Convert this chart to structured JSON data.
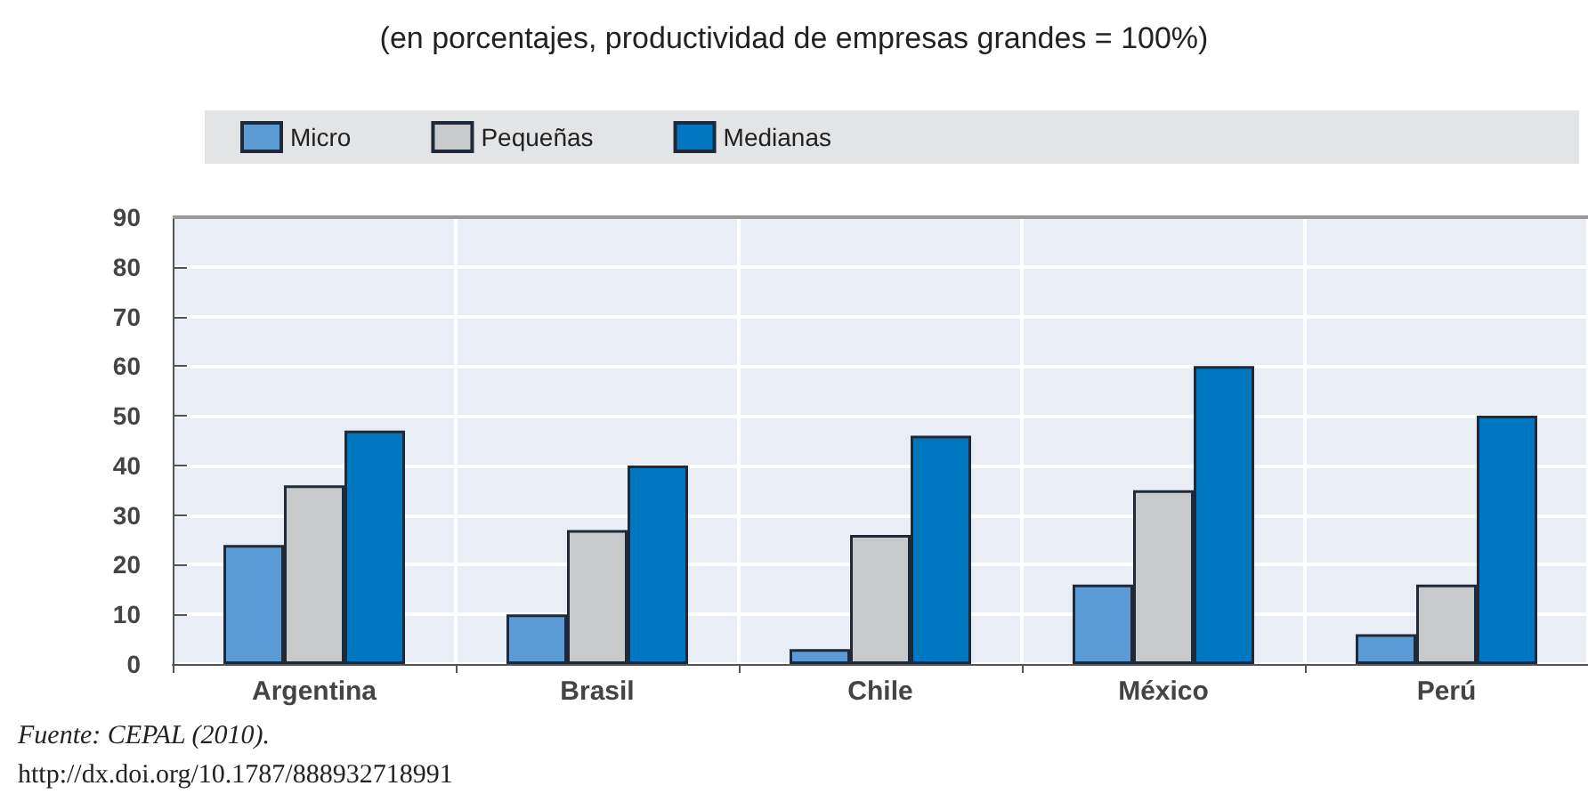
{
  "chart_data": {
    "type": "bar",
    "title": "(en porcentajes, productividad de empresas grandes = 100%)",
    "categories": [
      "Argentina",
      "Brasil",
      "Chile",
      "México",
      "Perú"
    ],
    "series": [
      {
        "name": "Micro",
        "color": "#5b9bd5",
        "values": [
          24,
          10,
          3,
          16,
          6
        ]
      },
      {
        "name": "Pequeñas",
        "color": "#c8c9ca",
        "values": [
          36,
          27,
          26,
          35,
          16
        ]
      },
      {
        "name": "Medianas",
        "color": "#0077c0",
        "values": [
          47,
          40,
          46,
          60,
          50
        ]
      }
    ],
    "ylim": [
      0,
      90
    ],
    "yticks": [
      0,
      10,
      20,
      30,
      40,
      50,
      60,
      70,
      80,
      90
    ],
    "grid": true,
    "legend": "top left",
    "annotations": [
      "Fuente: CEPAL (2010).",
      "http://dx.doi.org/10.1787/888932718991"
    ]
  }
}
